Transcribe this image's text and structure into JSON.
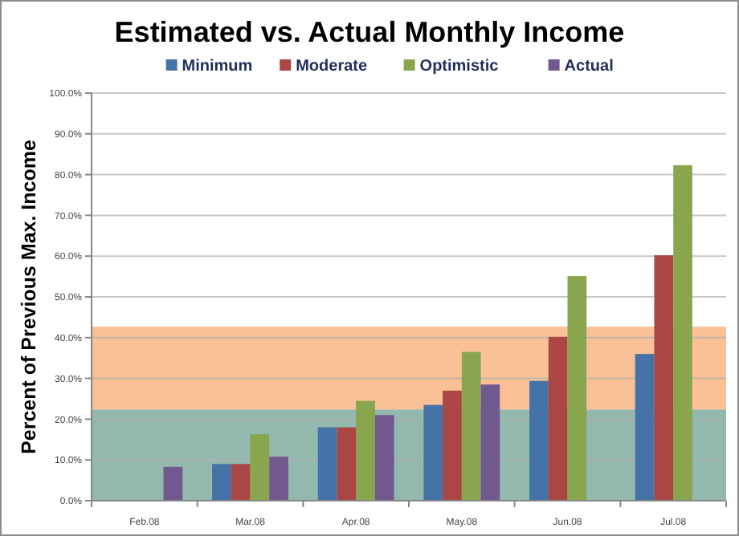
{
  "chart_data": {
    "type": "bar",
    "title": "Estimated vs. Actual Monthly Income",
    "ylabel": "Percent of Previous Max. Income",
    "categories": [
      "Feb.08",
      "Mar.08",
      "Apr.08",
      "May.08",
      "Jun.08",
      "Jul.08"
    ],
    "series": [
      {
        "name": "Minimum",
        "color": "#4572a7",
        "values": [
          null,
          9.0,
          18.0,
          23.5,
          29.4,
          36.0
        ]
      },
      {
        "name": "Moderate",
        "color": "#aa4643",
        "values": [
          null,
          9.0,
          18.0,
          27.0,
          40.2,
          60.2
        ]
      },
      {
        "name": "Optimistic",
        "color": "#89a54e",
        "values": [
          null,
          16.3,
          24.5,
          36.5,
          55.1,
          82.3
        ]
      },
      {
        "name": "Actual",
        "color": "#71588f",
        "values": [
          8.3,
          10.8,
          21.0,
          28.5,
          null,
          null
        ]
      }
    ],
    "ylim": [
      0,
      100
    ],
    "yticks": [
      {
        "value": 0,
        "label": "0.0%"
      },
      {
        "value": 10,
        "label": "10.0%"
      },
      {
        "value": 20,
        "label": "20.0%"
      },
      {
        "value": 30,
        "label": "30.0%"
      },
      {
        "value": 40,
        "label": "40.0%"
      },
      {
        "value": 50,
        "label": "50.0%"
      },
      {
        "value": 60,
        "label": "60.0%"
      },
      {
        "value": 70,
        "label": "70.0%"
      },
      {
        "value": 80,
        "label": "80.0%"
      },
      {
        "value": 90,
        "label": "90.0%"
      },
      {
        "value": 100,
        "label": "100.0%"
      }
    ],
    "bands": [
      {
        "axis": "y",
        "from": 0,
        "to": 22.4,
        "color": "#93b8ae"
      },
      {
        "axis": "y",
        "from": 22.4,
        "to": 42.7,
        "color": "#f9c195"
      }
    ],
    "grid": "y",
    "legend": "top"
  }
}
